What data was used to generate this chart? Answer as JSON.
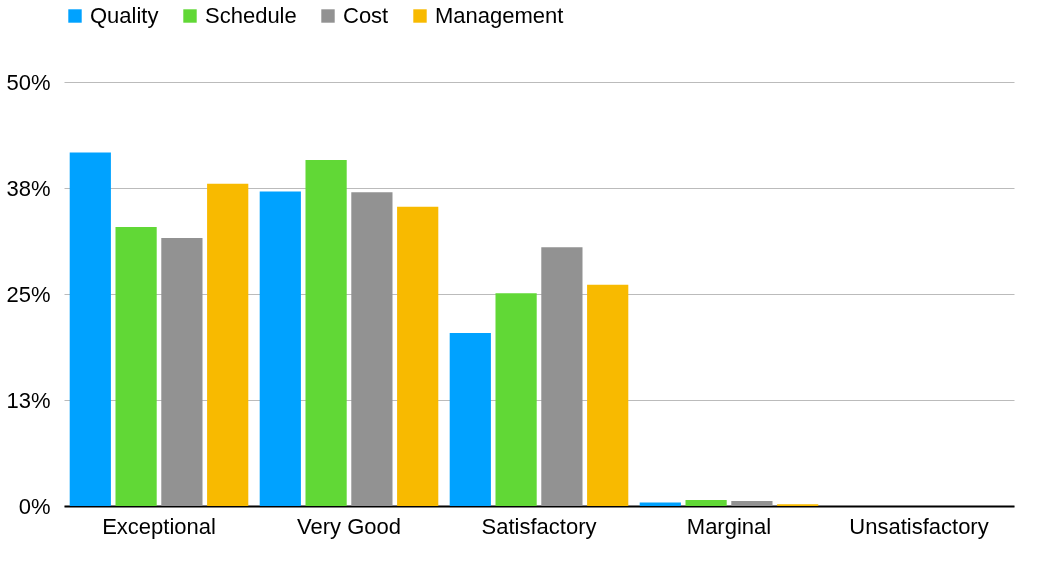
{
  "chart_data": {
    "type": "bar",
    "categories": [
      "Exceptional",
      "Very Good",
      "Satisfactory",
      "Marginal",
      "Unsatisfactory"
    ],
    "series": [
      {
        "name": "Quality",
        "color": "#00a2ff",
        "values": [
          41.7,
          37.1,
          20.4,
          0.4,
          0
        ]
      },
      {
        "name": "Schedule",
        "color": "#61d836",
        "values": [
          32.9,
          40.8,
          25.1,
          0.7,
          0
        ]
      },
      {
        "name": "Cost",
        "color": "#929292",
        "values": [
          31.6,
          37.0,
          30.5,
          0.6,
          0
        ]
      },
      {
        "name": "Management",
        "color": "#f8ba00",
        "values": [
          38.0,
          35.3,
          26.1,
          0.2,
          0
        ]
      }
    ],
    "ylim": [
      0,
      50
    ],
    "yticks": [
      {
        "value": 0,
        "label": "0%"
      },
      {
        "value": 12.5,
        "label": "13%"
      },
      {
        "value": 25,
        "label": "25%"
      },
      {
        "value": 37.5,
        "label": "38%"
      },
      {
        "value": 50,
        "label": "50%"
      }
    ],
    "grid": "y",
    "legend": "top"
  }
}
